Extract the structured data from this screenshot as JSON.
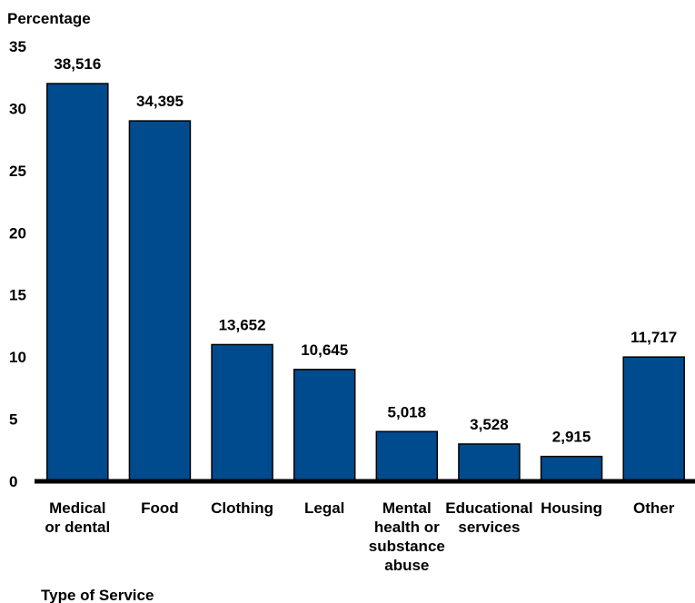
{
  "chart_data": {
    "type": "bar",
    "ylabel": "Percentage",
    "xlabel": "Type of Service",
    "ylim": [
      0,
      35
    ],
    "yticks": [
      0,
      5,
      10,
      15,
      20,
      25,
      30,
      35
    ],
    "grid": false,
    "categories": [
      [
        "Medical",
        "or dental"
      ],
      [
        "Food"
      ],
      [
        "Clothing"
      ],
      [
        "Legal"
      ],
      [
        "Mental",
        "health or",
        "substance",
        "abuse"
      ],
      [
        "Educational",
        "services"
      ],
      [
        "Housing"
      ],
      [
        "Other"
      ]
    ],
    "values": [
      32,
      29,
      11,
      9,
      4,
      3,
      2,
      10
    ],
    "data_labels": [
      "38,516",
      "34,395",
      "13,652",
      "10,645",
      "5,018",
      "3,528",
      "2,915",
      "11,717"
    ],
    "colors": {
      "bar": "#004b8d",
      "bar_outline": "#000000",
      "axis": "#000000"
    }
  }
}
